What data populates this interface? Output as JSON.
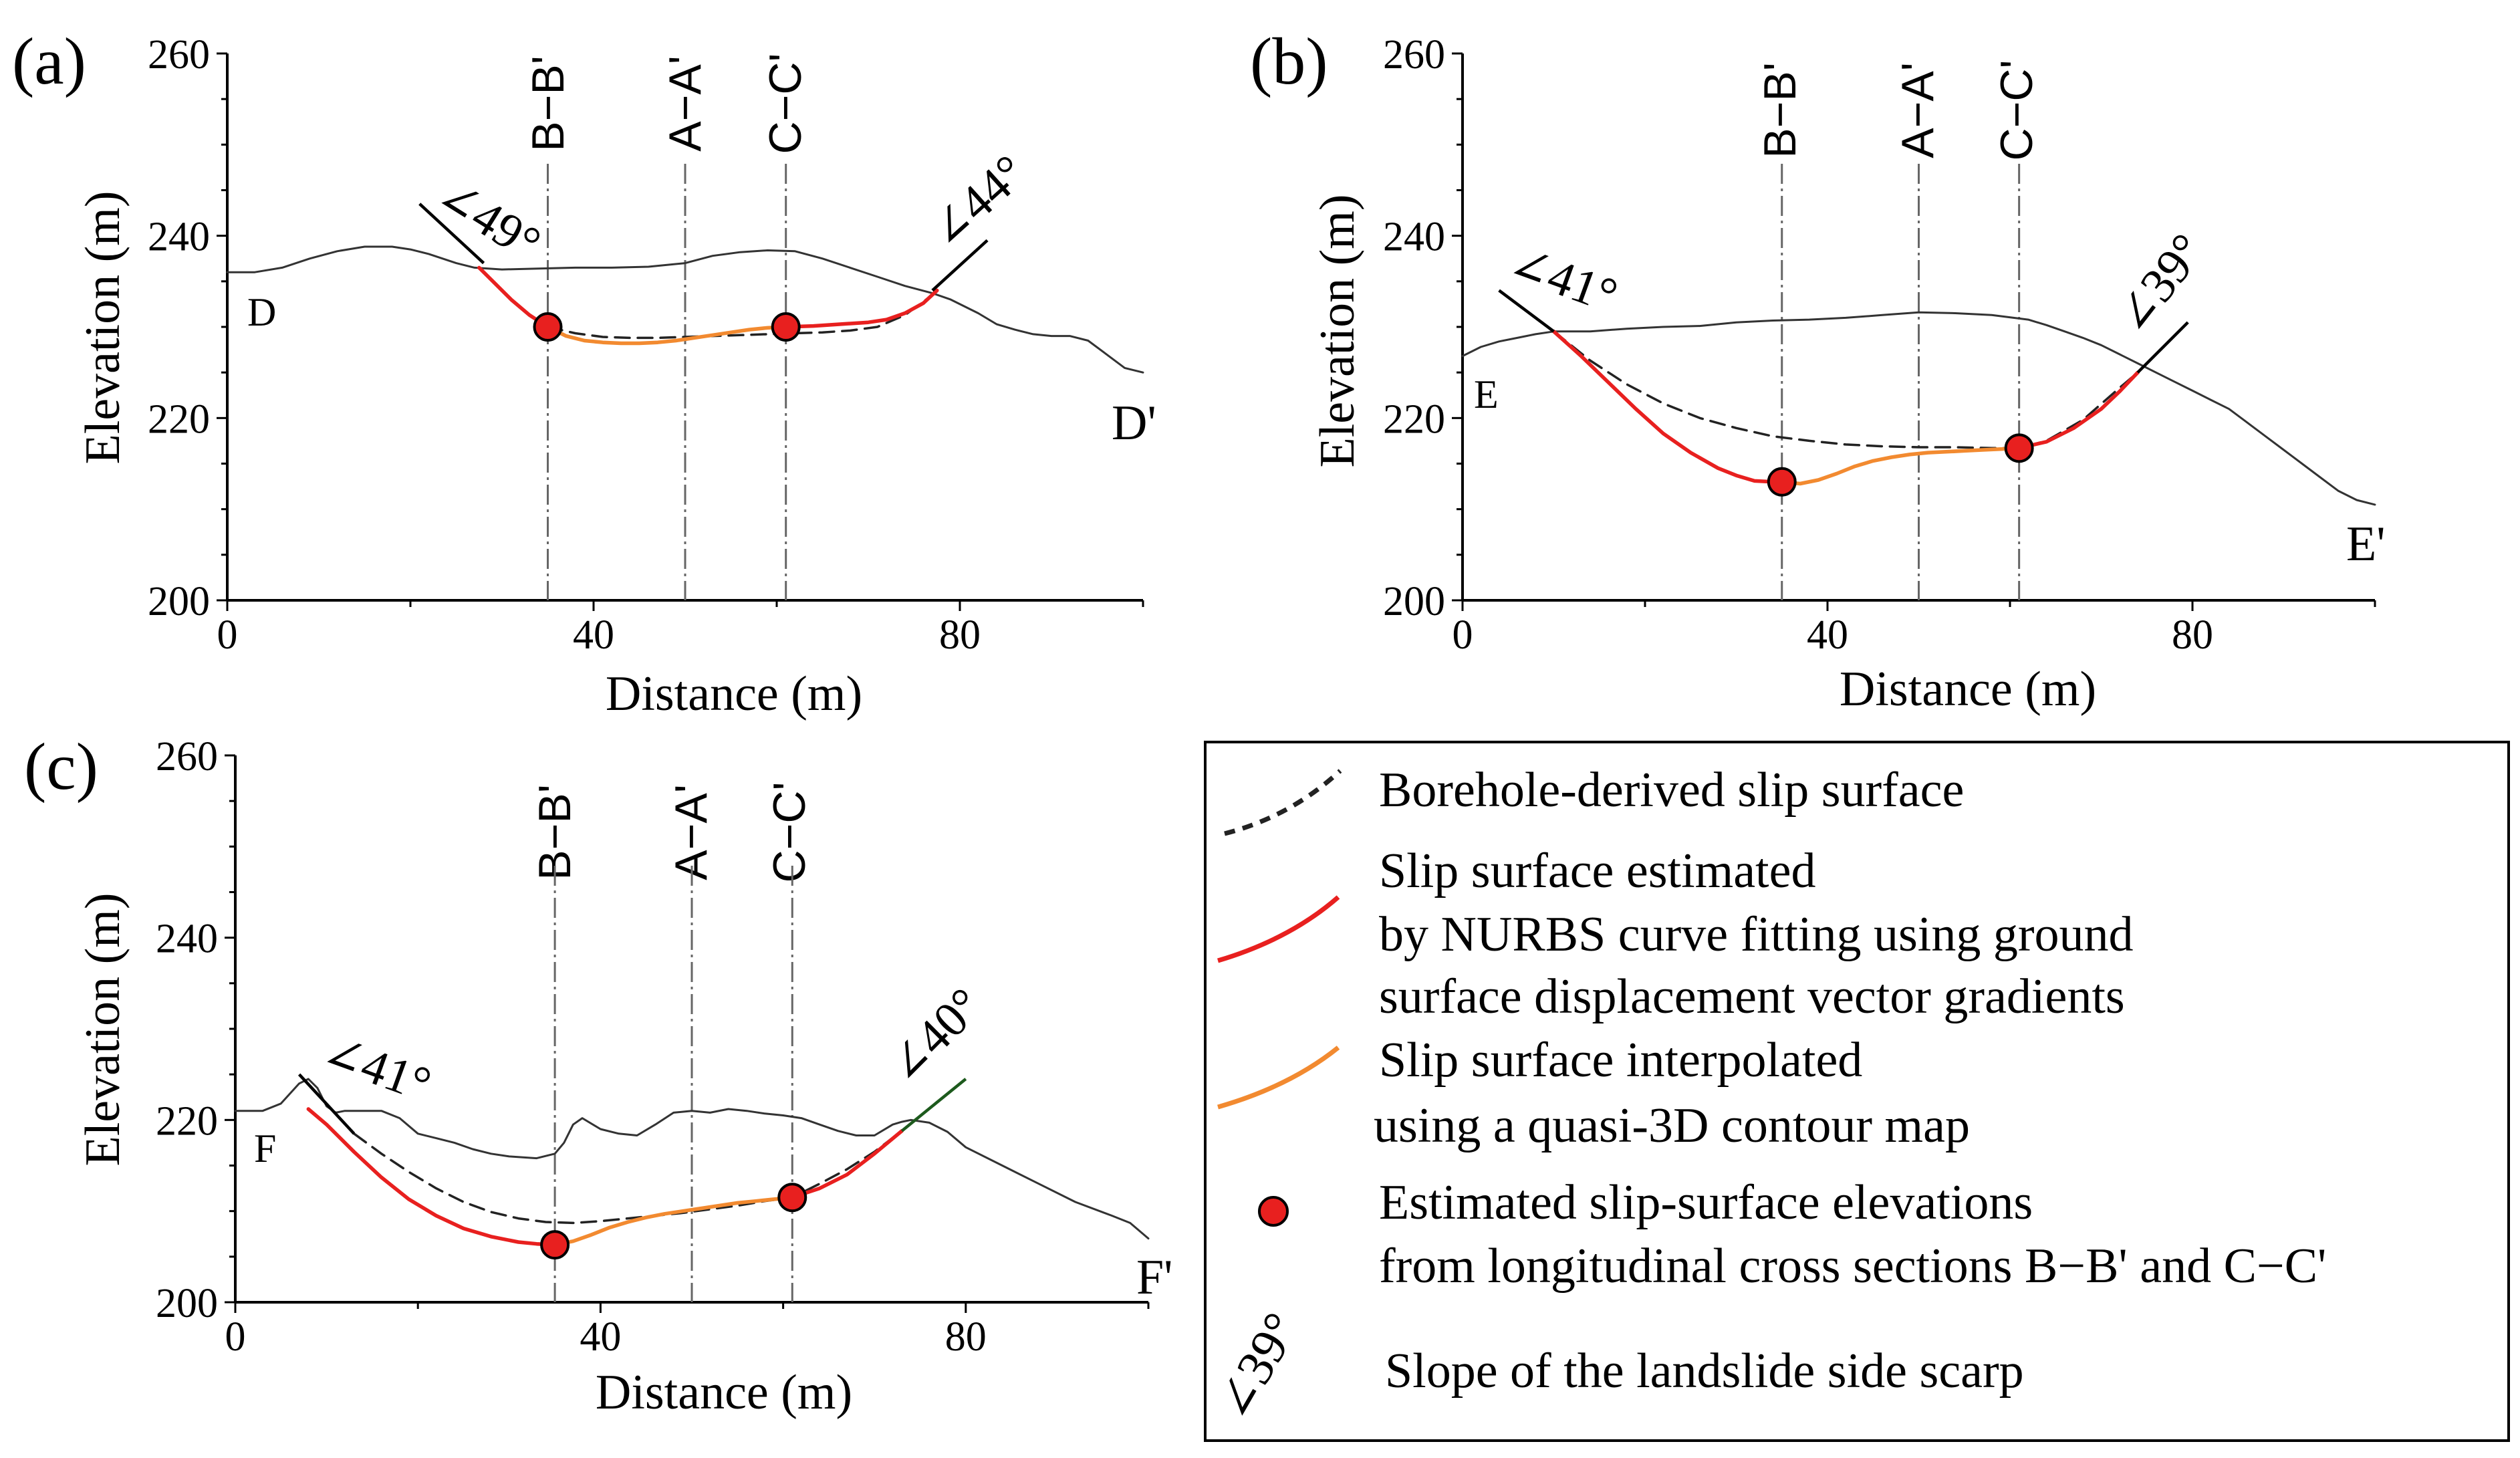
{
  "colors": {
    "borehole": "#222222",
    "nurbs": "#e8201f",
    "quasi3d": "#f28a30",
    "point_fill": "#e8201f",
    "ground": "#333333",
    "scarp_panel_a_c": "#000000",
    "scarp_panel_c_right": "#1d5a1d"
  },
  "legend": {
    "items": [
      {
        "key": "borehole",
        "label_lines": [
          "Borehole-derived slip surface"
        ]
      },
      {
        "key": "nurbs",
        "label_lines": [
          "Slip surface estimated",
          "by NURBS curve fitting using ground",
          "surface displacement vector gradients"
        ]
      },
      {
        "key": "quasi3d",
        "label_lines": [
          "Slip surface interpolated",
          "using a quasi-3D contour map"
        ]
      },
      {
        "key": "points",
        "label_lines": [
          "Estimated slip-surface elevations",
          "from longitudinal cross sections B−B' and C−C'"
        ]
      },
      {
        "key": "scarp",
        "symbol_text": "∠39°",
        "label_lines": [
          "Slope of the landslide side scarp"
        ]
      }
    ]
  },
  "chart_data": [
    {
      "type": "line",
      "panel_label": "(a)",
      "xlabel": "Distance (m)",
      "ylabel": "Elevation (m)",
      "xlim": [
        0,
        100
      ],
      "ylim": [
        200,
        260
      ],
      "xticks": [
        0,
        40,
        80
      ],
      "yticks": [
        200,
        220,
        240,
        260
      ],
      "start_label": "D",
      "end_label": "D'",
      "sections": [
        {
          "label": "B−B'",
          "x": 35
        },
        {
          "label": "A−A'",
          "x": 50
        },
        {
          "label": "C−C'",
          "x": 61
        }
      ],
      "scarps": [
        {
          "label": "∠49°",
          "x1": 21,
          "y1": 243.5,
          "x2": 28,
          "y2": 237,
          "color_key": "scarp_panel_a_c"
        },
        {
          "label": "∠44°",
          "x1": 77,
          "y1": 234,
          "x2": 83,
          "y2": 239.5,
          "color_key": "scarp_panel_a_c"
        }
      ],
      "series": [
        {
          "name": "Ground surface",
          "key": "ground",
          "x": [
            0,
            3,
            6,
            9,
            12,
            15,
            18,
            20,
            22,
            25,
            27,
            30,
            34,
            38,
            42,
            46,
            50,
            53,
            56,
            59,
            62,
            65,
            68,
            71,
            74,
            77,
            79,
            82,
            84,
            86,
            88,
            90,
            92,
            94,
            96,
            98,
            100
          ],
          "y": [
            236,
            236,
            236.5,
            237.5,
            238.3,
            238.8,
            238.8,
            238.5,
            238,
            237,
            236.5,
            236.3,
            236.4,
            236.5,
            236.5,
            236.6,
            237,
            237.8,
            238.2,
            238.4,
            238.3,
            237.5,
            236.5,
            235.5,
            234.5,
            233.7,
            233,
            231.5,
            230.3,
            229.7,
            229.2,
            229,
            229,
            228.5,
            227,
            225.5,
            225
          ]
        },
        {
          "name": "Borehole-derived slip surface",
          "key": "borehole",
          "x": [
            35,
            38,
            41,
            44,
            47,
            50,
            53,
            56,
            59,
            62,
            65,
            68,
            71,
            74,
            77
          ],
          "y": [
            230,
            229.3,
            228.9,
            228.8,
            228.8,
            228.9,
            229,
            229.1,
            229.2,
            229.3,
            229.4,
            229.6,
            230,
            231.3,
            233.5
          ]
        },
        {
          "name": "NURBS slip surface",
          "key": "nurbs",
          "x": [
            27.5,
            29,
            31,
            33,
            35
          ],
          "y": [
            236.5,
            235,
            233,
            231.3,
            230
          ]
        },
        {
          "name": "NURBS slip surface",
          "key": "nurbs",
          "x": [
            61,
            64,
            67,
            70,
            72,
            74,
            76,
            77.5
          ],
          "y": [
            230,
            230.1,
            230.3,
            230.5,
            230.8,
            231.5,
            232.6,
            234
          ]
        },
        {
          "name": "Quasi-3D interpolated slip surface",
          "key": "quasi3d",
          "x": [
            35,
            37,
            39,
            41,
            43,
            45,
            47,
            49,
            51,
            53,
            55,
            57,
            59,
            61
          ],
          "y": [
            230,
            229,
            228.5,
            228.3,
            228.2,
            228.2,
            228.3,
            228.5,
            228.8,
            229.1,
            229.4,
            229.7,
            229.9,
            230
          ]
        },
        {
          "name": "Estimated slip-surface elevations",
          "key": "points",
          "x": [
            35,
            61
          ],
          "y": [
            230,
            230
          ]
        }
      ]
    },
    {
      "type": "line",
      "panel_label": "(b)",
      "xlabel": "Distance (m)",
      "ylabel": "Elevation (m)",
      "xlim": [
        0,
        100
      ],
      "ylim": [
        200,
        260
      ],
      "xticks": [
        0,
        40,
        80
      ],
      "yticks": [
        200,
        220,
        240,
        260
      ],
      "start_label": "E",
      "end_label": "E'",
      "sections": [
        {
          "label": "B−B'",
          "x": 35
        },
        {
          "label": "A−A'",
          "x": 50
        },
        {
          "label": "C−C'",
          "x": 61
        }
      ],
      "scarps": [
        {
          "label": "∠41°",
          "x1": 4,
          "y1": 234,
          "x2": 10,
          "y2": 229.5,
          "color_key": "scarp_panel_a_c"
        },
        {
          "label": "∠39°",
          "x1": 74,
          "y1": 225,
          "x2": 79.5,
          "y2": 230.5,
          "color_key": "scarp_panel_a_c"
        }
      ],
      "series": [
        {
          "name": "Ground surface",
          "key": "ground",
          "x": [
            0,
            2,
            4,
            6,
            8,
            10,
            14,
            18,
            22,
            26,
            30,
            34,
            38,
            42,
            46,
            50,
            54,
            58,
            62,
            64,
            66,
            68,
            70,
            72,
            74,
            76,
            78,
            80,
            82,
            84,
            86,
            88,
            90,
            92,
            94,
            96,
            98,
            100
          ],
          "y": [
            226.8,
            227.8,
            228.4,
            228.8,
            229.2,
            229.5,
            229.5,
            229.8,
            230,
            230.1,
            230.5,
            230.7,
            230.8,
            231,
            231.3,
            231.6,
            231.5,
            231.3,
            230.8,
            230.2,
            229.5,
            228.8,
            228,
            227,
            226,
            225,
            224,
            223,
            222,
            221,
            219.5,
            218,
            216.5,
            215,
            213.5,
            212,
            211,
            210.5
          ]
        },
        {
          "name": "Borehole-derived slip surface",
          "key": "borehole",
          "x": [
            10,
            14,
            18,
            22,
            26,
            30,
            34,
            38,
            42,
            46,
            50,
            54,
            58,
            61,
            64,
            68,
            72,
            74
          ],
          "y": [
            229.5,
            226.3,
            223.7,
            221.6,
            220,
            218.9,
            218,
            217.5,
            217.1,
            216.9,
            216.8,
            216.8,
            216.7,
            216.7,
            217.5,
            219.8,
            223.3,
            225
          ]
        },
        {
          "name": "NURBS slip surface",
          "key": "nurbs",
          "x": [
            10,
            13,
            16,
            19,
            22,
            25,
            28,
            30,
            32,
            34,
            35
          ],
          "y": [
            229.5,
            226.8,
            223.9,
            221,
            218.3,
            216.2,
            214.5,
            213.7,
            213.1,
            213,
            213
          ]
        },
        {
          "name": "NURBS slip surface",
          "key": "nurbs",
          "x": [
            61,
            64,
            67,
            70,
            72,
            74
          ],
          "y": [
            216.7,
            217.4,
            218.9,
            221,
            222.9,
            225
          ]
        },
        {
          "name": "Quasi-3D interpolated slip surface",
          "key": "quasi3d",
          "x": [
            35,
            37,
            39,
            41,
            43,
            45,
            47,
            49,
            51,
            53,
            55,
            57,
            59,
            61
          ],
          "y": [
            213,
            212.8,
            213.2,
            213.9,
            214.7,
            215.3,
            215.7,
            216,
            216.2,
            216.3,
            216.4,
            216.5,
            216.6,
            216.7
          ]
        },
        {
          "name": "Estimated slip-surface elevations",
          "key": "points",
          "x": [
            35,
            61
          ],
          "y": [
            213,
            216.7
          ]
        }
      ]
    },
    {
      "type": "line",
      "panel_label": "(c)",
      "xlabel": "Distance (m)",
      "ylabel": "Elevation (m)",
      "xlim": [
        0,
        100
      ],
      "ylim": [
        200,
        260
      ],
      "xticks": [
        0,
        40,
        80
      ],
      "yticks": [
        200,
        220,
        240,
        260
      ],
      "start_label": "F",
      "end_label": "F'",
      "sections": [
        {
          "label": "B−B'",
          "x": 35
        },
        {
          "label": "A−A'",
          "x": 50
        },
        {
          "label": "C−C'",
          "x": 61
        }
      ],
      "scarps": [
        {
          "label": "∠41°",
          "x1": 7,
          "y1": 225,
          "x2": 13,
          "y2": 218.5,
          "color_key": "scarp_panel_a_c"
        },
        {
          "label": "∠40°",
          "x1": 73,
          "y1": 218.8,
          "x2": 80,
          "y2": 224.5,
          "color_key": "scarp_panel_c_right"
        }
      ],
      "series": [
        {
          "name": "Ground surface",
          "key": "ground",
          "x": [
            0,
            3,
            5,
            7,
            8,
            9,
            10,
            11,
            12,
            14,
            16,
            18,
            20,
            22,
            24,
            26,
            28,
            30,
            33,
            35,
            36,
            37,
            38,
            40,
            42,
            44,
            46,
            48,
            50,
            52,
            54,
            56,
            58,
            60,
            62,
            64,
            66,
            68,
            70,
            72,
            73,
            74,
            76,
            78,
            80,
            84,
            88,
            92,
            96,
            98,
            100
          ],
          "y": [
            221,
            221,
            221.8,
            224,
            224.5,
            223.5,
            221.5,
            220.8,
            221,
            221,
            221,
            220.2,
            218.5,
            218,
            217.5,
            216.8,
            216.3,
            216,
            215.8,
            216.3,
            217.5,
            219.5,
            220.2,
            219,
            218.5,
            218.3,
            219.5,
            220.8,
            221,
            220.8,
            221.2,
            221,
            220.7,
            220.5,
            220.2,
            219.5,
            218.8,
            218.3,
            218.3,
            219.5,
            219.8,
            220,
            219.7,
            218.7,
            217,
            215,
            213,
            211,
            209.5,
            208.7,
            207
          ]
        },
        {
          "name": "Borehole-derived slip surface",
          "key": "borehole",
          "x": [
            13,
            16,
            19,
            22,
            25,
            28,
            31,
            34,
            37,
            40,
            43,
            46,
            49,
            52,
            55,
            58,
            61,
            64,
            67,
            70,
            73
          ],
          "y": [
            218.5,
            216.3,
            214.3,
            212.5,
            211,
            209.9,
            209.2,
            208.8,
            208.7,
            208.9,
            209.2,
            209.5,
            209.8,
            210.2,
            210.6,
            211.1,
            211.5,
            213,
            214.6,
            216.5,
            218.8
          ]
        },
        {
          "name": "NURBS slip surface",
          "key": "nurbs",
          "x": [
            8,
            10,
            13,
            16,
            19,
            22,
            25,
            28,
            31,
            33,
            35
          ],
          "y": [
            221.2,
            219.5,
            216.5,
            213.7,
            211.3,
            209.5,
            208.1,
            207.2,
            206.6,
            206.4,
            206.3
          ]
        },
        {
          "name": "NURBS slip surface",
          "key": "nurbs",
          "x": [
            61,
            64,
            67,
            70,
            73
          ],
          "y": [
            211.5,
            212.5,
            214,
            216.3,
            218.8
          ]
        },
        {
          "name": "Quasi-3D interpolated slip surface",
          "key": "quasi3d",
          "x": [
            35,
            37,
            39,
            41,
            43,
            45,
            47,
            49,
            51,
            53,
            55,
            57,
            59,
            61
          ],
          "y": [
            206.3,
            206.7,
            207.4,
            208.2,
            208.8,
            209.3,
            209.7,
            210,
            210.3,
            210.6,
            210.9,
            211.1,
            211.3,
            211.5
          ]
        },
        {
          "name": "Estimated slip-surface elevations",
          "key": "points",
          "x": [
            35,
            61
          ],
          "y": [
            206.3,
            211.5
          ]
        }
      ]
    }
  ]
}
